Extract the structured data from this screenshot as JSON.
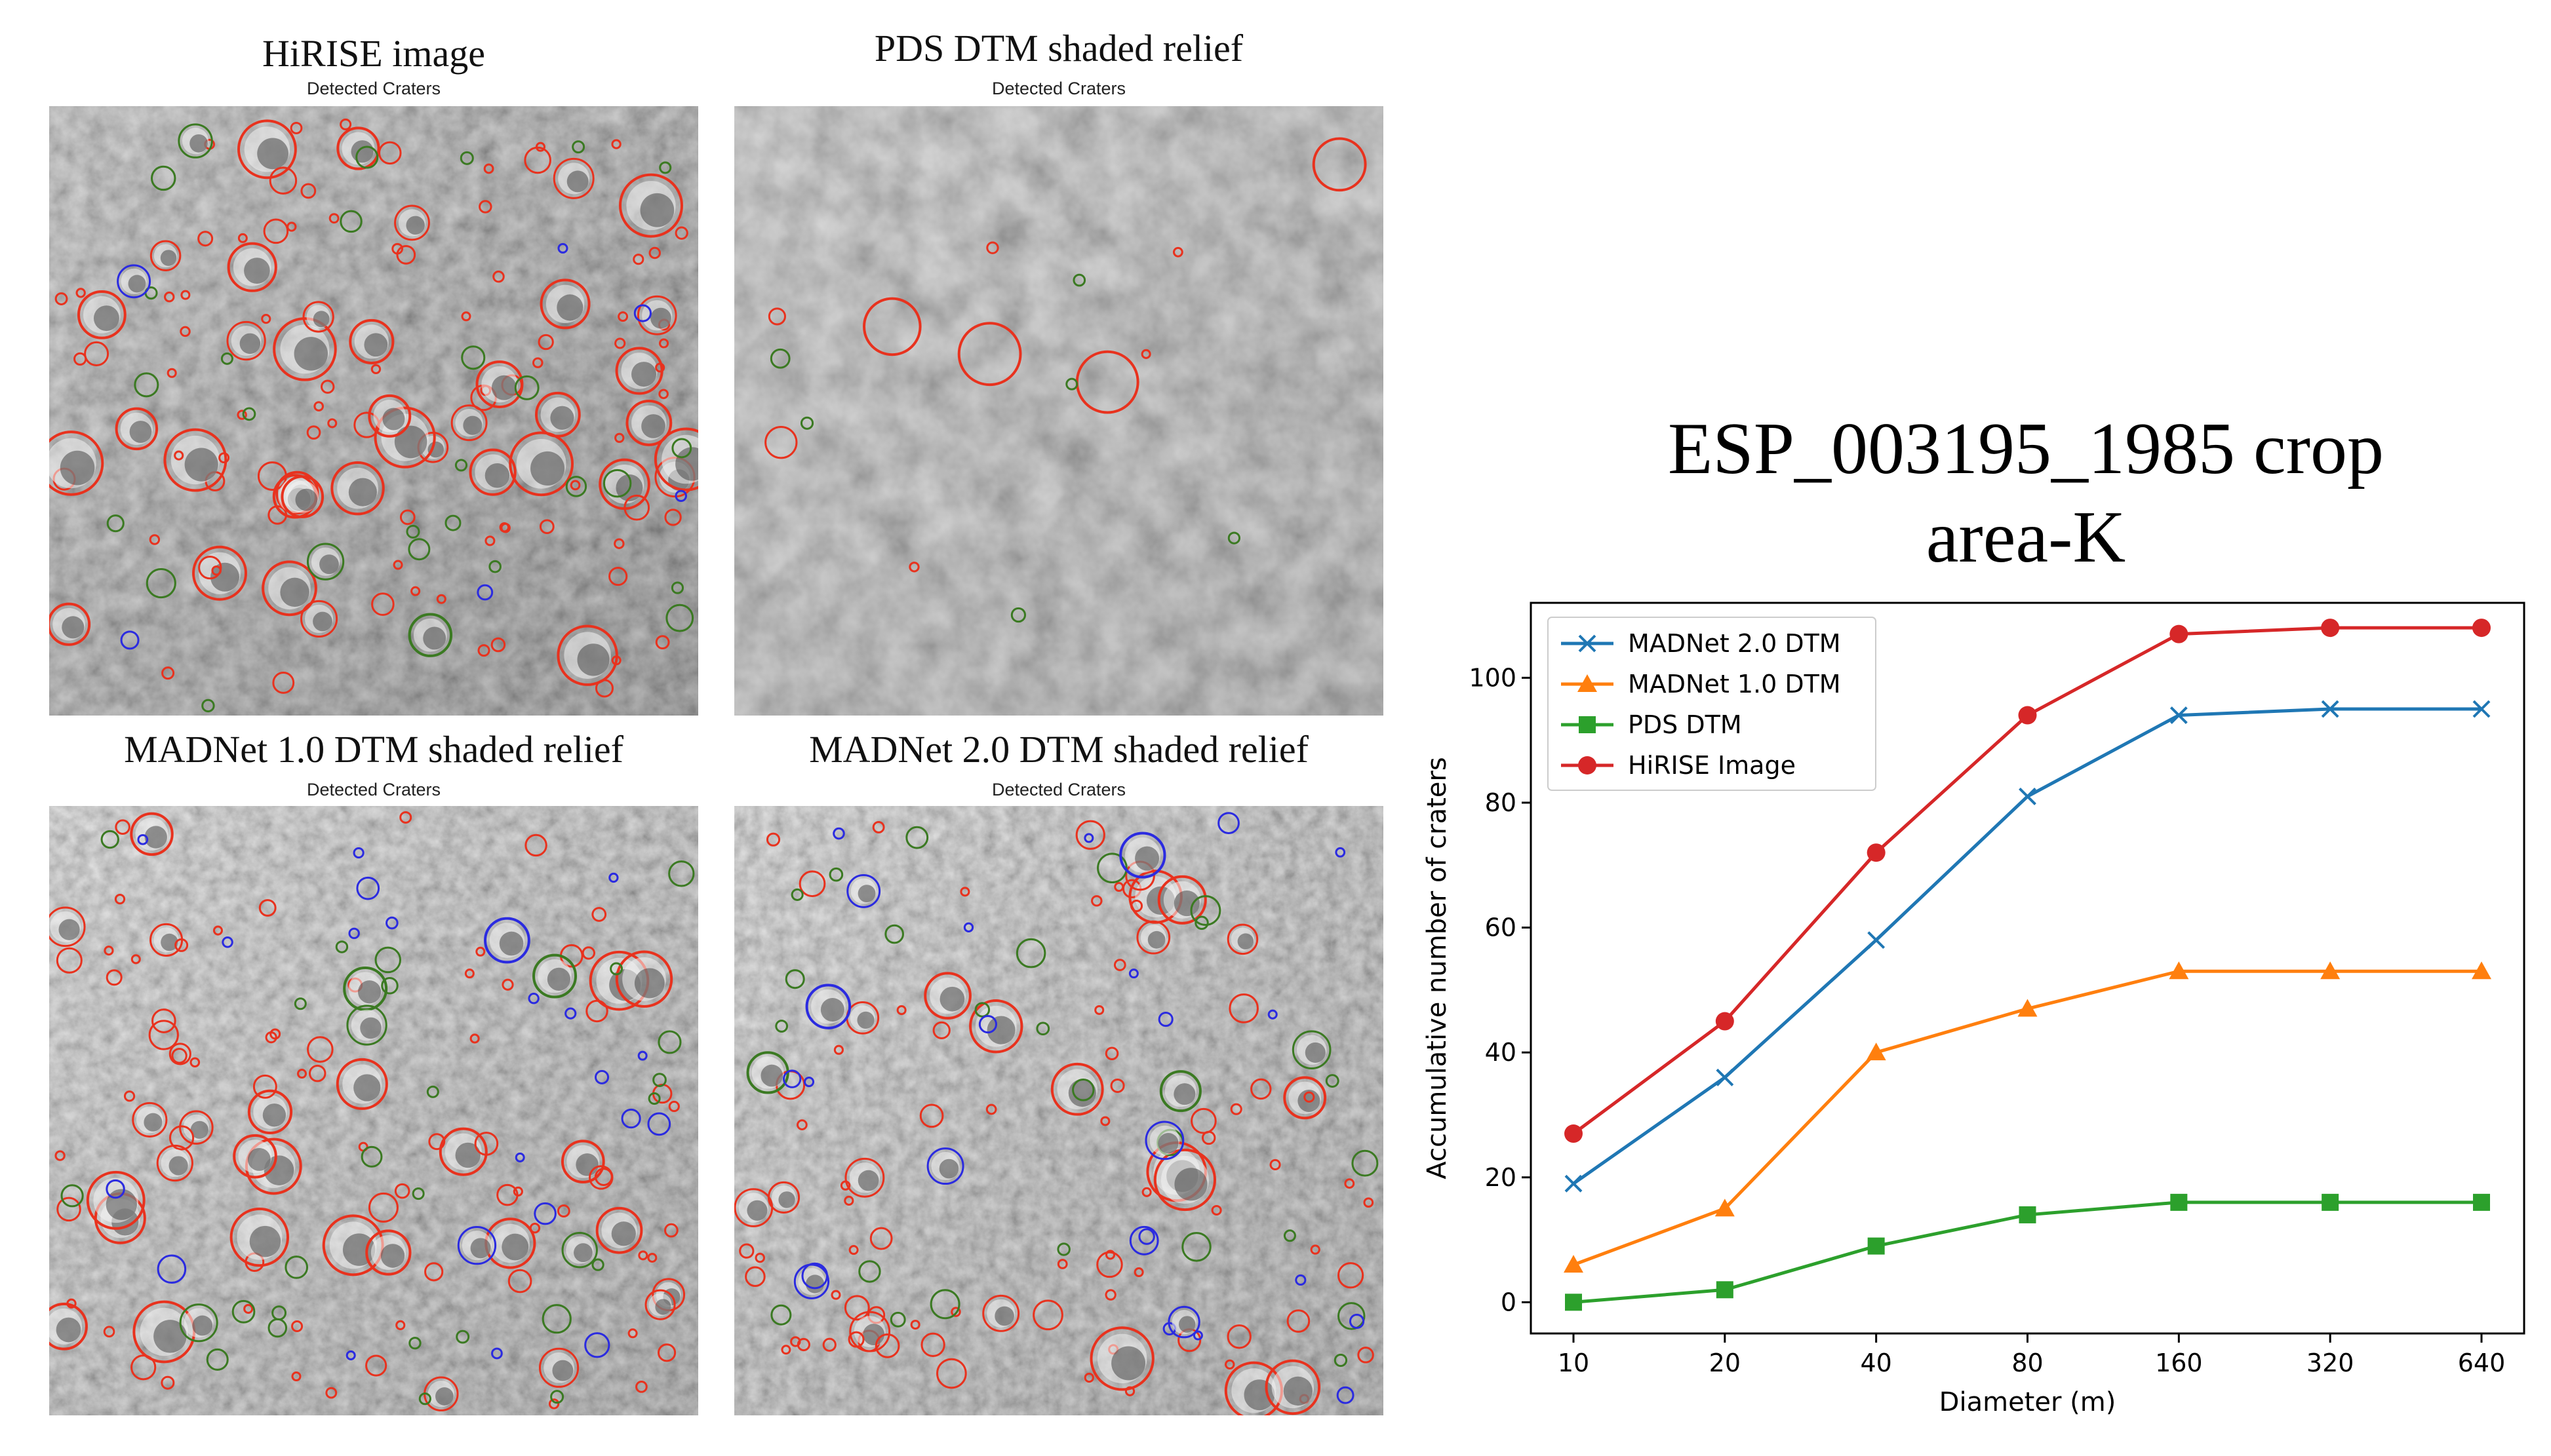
{
  "panels": [
    {
      "title": "HiRISE image",
      "subtitle": "Detected Craters",
      "surface": "hirise"
    },
    {
      "title": "PDS DTM shaded relief",
      "subtitle": "",
      "surface": "pds"
    },
    {
      "title": "MADNet 1.0 DTM shaded relief",
      "subtitle": "Detected Craters",
      "surface": "mad1"
    },
    {
      "title": "MADNet 2.0 DTM shaded relief",
      "subtitle": "Detected Craters",
      "surface": "mad2"
    }
  ],
  "pds_subtitle": "Detected Craters",
  "chart_title_line1": "ESP_003195_1985 crop",
  "chart_title_line2": "area-K",
  "colors": {
    "red": "#e8321e",
    "green": "#3b7a22",
    "blue": "#2b2be0"
  },
  "chart_data": {
    "type": "line",
    "title": "ESP_003195_1985 crop area-K",
    "xlabel": "Diameter (m)",
    "ylabel": "Accumulative number of craters",
    "categories": [
      "10",
      "20",
      "40",
      "80",
      "160",
      "320",
      "640"
    ],
    "ylim": [
      -5,
      112
    ],
    "yticks": [
      0,
      20,
      40,
      60,
      80,
      100
    ],
    "legend_position": "top-left",
    "series": [
      {
        "name": "MADNet 2.0 DTM",
        "color": "#1f77b4",
        "marker": "x",
        "values": [
          19,
          36,
          58,
          81,
          94,
          95,
          95
        ]
      },
      {
        "name": "MADNet 1.0 DTM",
        "color": "#ff7f0e",
        "marker": "triangle",
        "values": [
          6,
          15,
          40,
          47,
          53,
          53,
          53
        ]
      },
      {
        "name": "PDS DTM",
        "color": "#2ca02c",
        "marker": "square",
        "values": [
          0,
          2,
          9,
          14,
          16,
          16,
          16
        ]
      },
      {
        "name": "HiRISE Image",
        "color": "#d62728",
        "marker": "circle",
        "values": [
          27,
          45,
          72,
          94,
          107,
          108,
          108
        ]
      }
    ]
  }
}
